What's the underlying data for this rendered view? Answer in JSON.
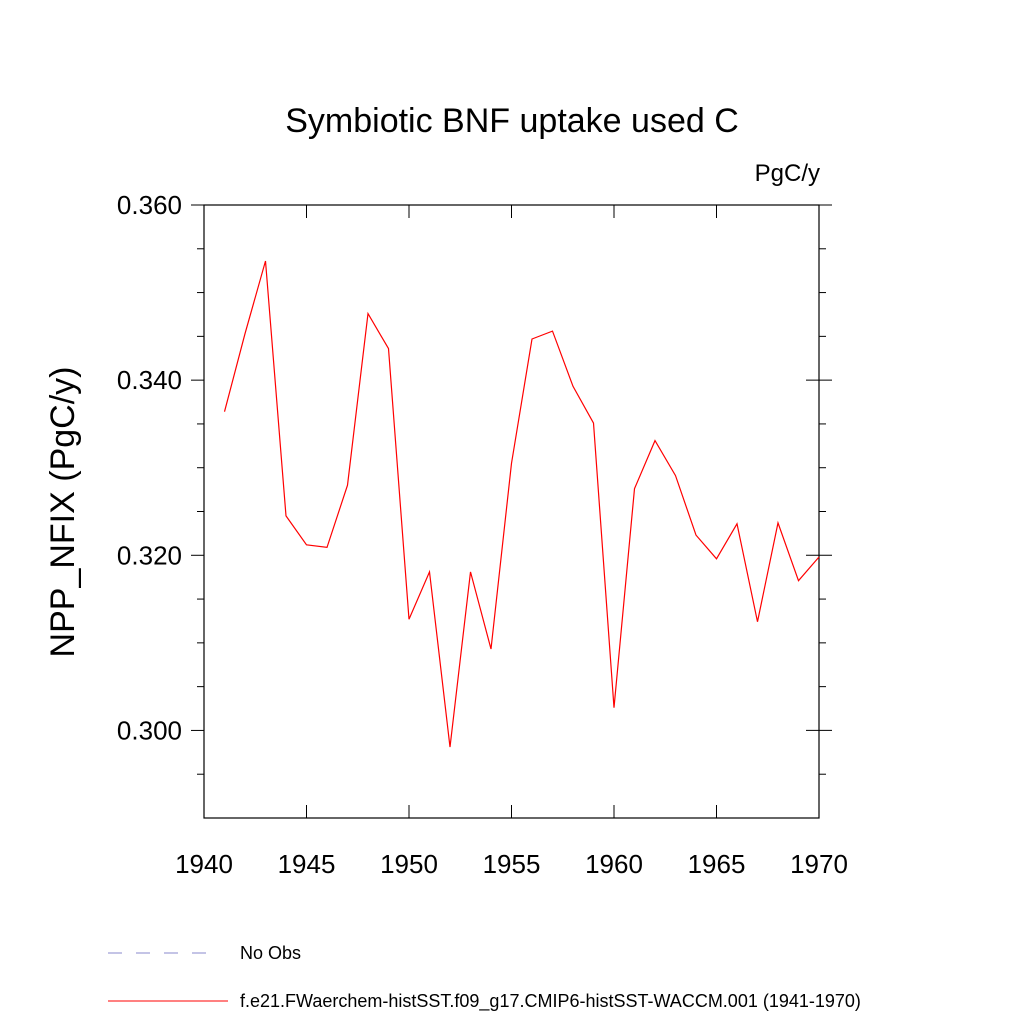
{
  "chart_data": {
    "type": "line",
    "title": "Symbiotic BNF uptake used C",
    "units_label": "PgC/y",
    "ylabel": "NPP_NFIX  (PgC/y)",
    "xlabel": "",
    "xlim": [
      1940,
      1970
    ],
    "ylim": [
      0.29,
      0.36
    ],
    "x_ticks": [
      1940,
      1945,
      1950,
      1955,
      1960,
      1965,
      1970
    ],
    "x_tick_labels": [
      "1940",
      "1945",
      "1950",
      "1955",
      "1960",
      "1965",
      "1970"
    ],
    "y_ticks": [
      0.3,
      0.32,
      0.34,
      0.36
    ],
    "y_tick_labels": [
      "0.300",
      "0.320",
      "0.340",
      "0.360"
    ],
    "y_minor_step": 0.005,
    "x_minor_step": 1,
    "grid": false,
    "legend_position": "bottom-left, below plot",
    "series": [
      {
        "name": "f.e21.FWaerchem-histSST.f09_g17.CMIP6-histSST-WACCM.001 (1941-1970)",
        "color": "#ff0000",
        "style": "solid",
        "x": [
          1941,
          1942,
          1943,
          1944,
          1945,
          1946,
          1947,
          1948,
          1949,
          1950,
          1951,
          1952,
          1953,
          1954,
          1955,
          1956,
          1957,
          1958,
          1959,
          1960,
          1961,
          1962,
          1963,
          1964,
          1965,
          1966,
          1967,
          1968,
          1969,
          1970
        ],
        "values": [
          0.3364,
          0.3453,
          0.3536,
          0.3245,
          0.3212,
          0.3209,
          0.328,
          0.3476,
          0.3436,
          0.3127,
          0.3181,
          0.2981,
          0.3181,
          0.3093,
          0.3305,
          0.3447,
          0.3456,
          0.3393,
          0.3351,
          0.3026,
          0.3276,
          0.3331,
          0.3291,
          0.3223,
          0.3196,
          0.3236,
          0.3124,
          0.3237,
          0.3171,
          0.3198
        ]
      }
    ],
    "legend": [
      {
        "label": "No Obs",
        "color": "#8888cc",
        "style": "dashed"
      },
      {
        "label": "f.e21.FWaerchem-histSST.f09_g17.CMIP6-histSST-WACCM.001 (1941-1970)",
        "color": "#ff0000",
        "style": "solid"
      }
    ]
  }
}
